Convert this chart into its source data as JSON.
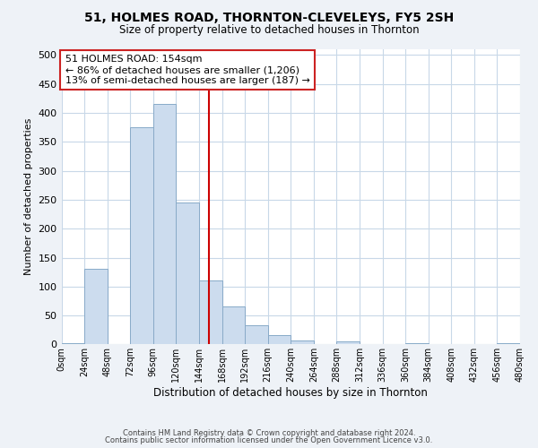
{
  "title": "51, HOLMES ROAD, THORNTON-CLEVELEYS, FY5 2SH",
  "subtitle": "Size of property relative to detached houses in Thornton",
  "xlabel": "Distribution of detached houses by size in Thornton",
  "ylabel": "Number of detached properties",
  "bin_edges": [
    0,
    24,
    48,
    72,
    96,
    120,
    144,
    168,
    192,
    216,
    240,
    264,
    288,
    312,
    336,
    360,
    384,
    408,
    432,
    456,
    480
  ],
  "bar_heights": [
    2,
    130,
    0,
    375,
    415,
    246,
    110,
    65,
    33,
    16,
    7,
    0,
    5,
    0,
    0,
    2,
    0,
    0,
    0,
    2
  ],
  "bar_color": "#ccdcee",
  "bar_edge_color": "#88aac8",
  "vline_x": 154,
  "vline_color": "#cc0000",
  "annotation_title": "51 HOLMES ROAD: 154sqm",
  "annotation_line2": "← 86% of detached houses are smaller (1,206)",
  "annotation_line3": "13% of semi-detached houses are larger (187) →",
  "annotation_box_facecolor": "#ffffff",
  "annotation_box_edgecolor": "#cc2222",
  "ylim": [
    0,
    510
  ],
  "yticks": [
    0,
    50,
    100,
    150,
    200,
    250,
    300,
    350,
    400,
    450,
    500
  ],
  "bg_color": "#eef2f7",
  "plot_bg_color": "#ffffff",
  "grid_color": "#c8d8e8",
  "footer_line1": "Contains HM Land Registry data © Crown copyright and database right 2024.",
  "footer_line2": "Contains public sector information licensed under the Open Government Licence v3.0."
}
